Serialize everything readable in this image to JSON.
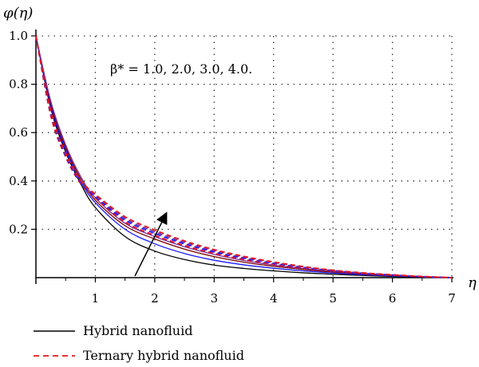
{
  "chart_data": {
    "type": "line",
    "ylabel": "φ(η)",
    "xlabel": "η",
    "xlim": [
      0,
      7
    ],
    "ylim": [
      0,
      1.0
    ],
    "x_ticks": [
      "1",
      "2",
      "3",
      "4",
      "5",
      "6",
      "7"
    ],
    "y_ticks": [
      "0.2",
      "0.4",
      "0.6",
      "0.8",
      "1.0"
    ],
    "grid": "dotted",
    "annotation": "β* = 1.0, 2.0, 3.0, 4.0.",
    "arrow_direction": "increasing β*",
    "legend": [
      {
        "label": "Hybrid nanofluid",
        "style": "solid",
        "color": "#000000"
      },
      {
        "label": "Ternary hybrid nanofluid",
        "style": "dashed",
        "color": "#e8141b"
      }
    ],
    "x": [
      0,
      0.25,
      0.5,
      0.75,
      1,
      1.5,
      2,
      2.5,
      3,
      3.5,
      4,
      4.5,
      5,
      5.5,
      6,
      6.5,
      7
    ],
    "series": [
      {
        "group": "Hybrid nanofluid",
        "beta": 1.0,
        "color": "#000000",
        "dash": false,
        "values": [
          1.0,
          0.7,
          0.52,
          0.39,
          0.29,
          0.17,
          0.11,
          0.075,
          0.052,
          0.038,
          0.028,
          0.02,
          0.014,
          0.009,
          0.005,
          0.002,
          0
        ]
      },
      {
        "group": "Hybrid nanofluid",
        "beta": 2.0,
        "color": "#1a1aff",
        "dash": false,
        "values": [
          1.0,
          0.71,
          0.53,
          0.4,
          0.31,
          0.2,
          0.14,
          0.1,
          0.072,
          0.053,
          0.039,
          0.028,
          0.019,
          0.012,
          0.007,
          0.003,
          0
        ]
      },
      {
        "group": "Hybrid nanofluid",
        "beta": 3.0,
        "color": "#7a0000",
        "dash": false,
        "values": [
          1.0,
          0.72,
          0.54,
          0.41,
          0.32,
          0.215,
          0.16,
          0.118,
          0.087,
          0.064,
          0.047,
          0.034,
          0.023,
          0.015,
          0.009,
          0.004,
          0
        ]
      },
      {
        "group": "Hybrid nanofluid",
        "beta": 4.0,
        "color": "#7a2fa0",
        "dash": false,
        "values": [
          1.0,
          0.73,
          0.55,
          0.42,
          0.33,
          0.225,
          0.17,
          0.128,
          0.096,
          0.071,
          0.052,
          0.037,
          0.026,
          0.017,
          0.01,
          0.004,
          0
        ]
      },
      {
        "group": "Ternary hybrid nanofluid",
        "beta": 1.0,
        "color": "#e8141b",
        "dash": true,
        "values": [
          1.0,
          0.67,
          0.5,
          0.39,
          0.33,
          0.23,
          0.175,
          0.133,
          0.1,
          0.075,
          0.055,
          0.039,
          0.027,
          0.017,
          0.01,
          0.004,
          0
        ]
      },
      {
        "group": "Ternary hybrid nanofluid",
        "beta": 2.0,
        "color": "#1a1aff",
        "dash": true,
        "values": [
          1.0,
          0.68,
          0.505,
          0.395,
          0.335,
          0.238,
          0.183,
          0.14,
          0.106,
          0.08,
          0.059,
          0.042,
          0.029,
          0.018,
          0.011,
          0.004,
          0
        ]
      },
      {
        "group": "Ternary hybrid nanofluid",
        "beta": 3.0,
        "color": "#7a2fa0",
        "dash": true,
        "values": [
          1.0,
          0.685,
          0.51,
          0.4,
          0.34,
          0.245,
          0.19,
          0.146,
          0.111,
          0.084,
          0.062,
          0.044,
          0.03,
          0.019,
          0.011,
          0.005,
          0
        ]
      },
      {
        "group": "Ternary hybrid nanofluid",
        "beta": 4.0,
        "color": "#e8141b",
        "dash": true,
        "values": [
          1.0,
          0.69,
          0.515,
          0.405,
          0.345,
          0.252,
          0.197,
          0.152,
          0.116,
          0.088,
          0.065,
          0.046,
          0.031,
          0.02,
          0.012,
          0.005,
          0
        ]
      }
    ]
  }
}
